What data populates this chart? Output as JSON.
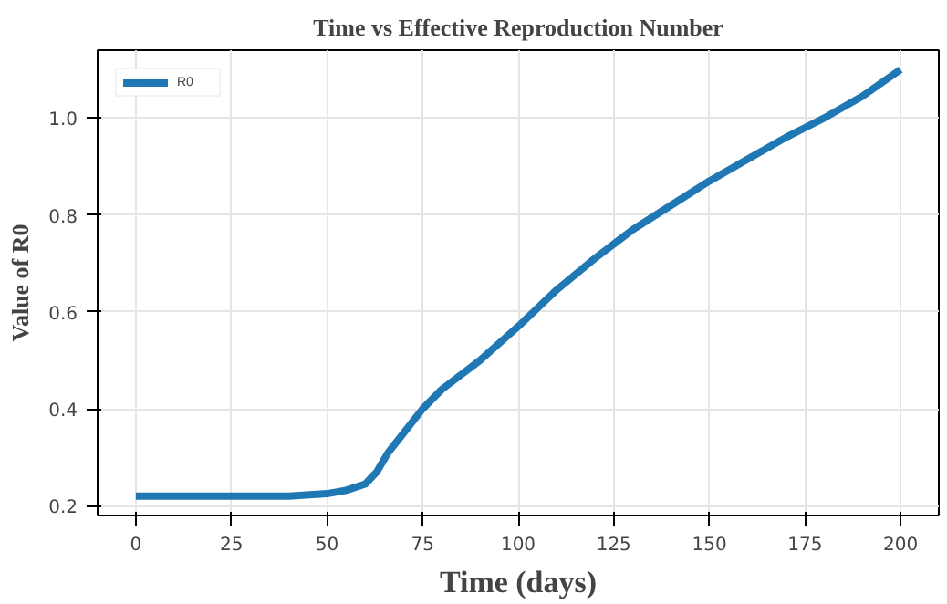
{
  "chart_data": {
    "type": "line",
    "title": "Time vs Effective Reproduction Number",
    "xlabel": "Time (days)",
    "ylabel": "Value of R0",
    "x": [
      0,
      25,
      40,
      50,
      55,
      60,
      63,
      66,
      70,
      75,
      80,
      85,
      90,
      100,
      110,
      120,
      125,
      130,
      140,
      150,
      160,
      170,
      175,
      180,
      190,
      200
    ],
    "series": [
      {
        "name": "R0",
        "color": "#1f77b4",
        "values": [
          0.22,
          0.22,
          0.22,
          0.225,
          0.232,
          0.245,
          0.27,
          0.31,
          0.35,
          0.4,
          0.44,
          0.47,
          0.5,
          0.57,
          0.645,
          0.71,
          0.74,
          0.77,
          0.82,
          0.87,
          0.915,
          0.96,
          0.98,
          1.0,
          1.045,
          1.1
        ]
      }
    ],
    "xlim": [
      -10,
      210
    ],
    "ylim": [
      0.18,
      1.14
    ],
    "xticks": [
      0,
      25,
      50,
      75,
      100,
      125,
      150,
      175,
      200
    ],
    "yticks": [
      0.2,
      0.4,
      0.6,
      0.8,
      {
        "value": 1.0,
        "label": "1.0"
      }
    ],
    "grid": true,
    "legend": "top left",
    "line_style": "solid",
    "marker": "none"
  }
}
